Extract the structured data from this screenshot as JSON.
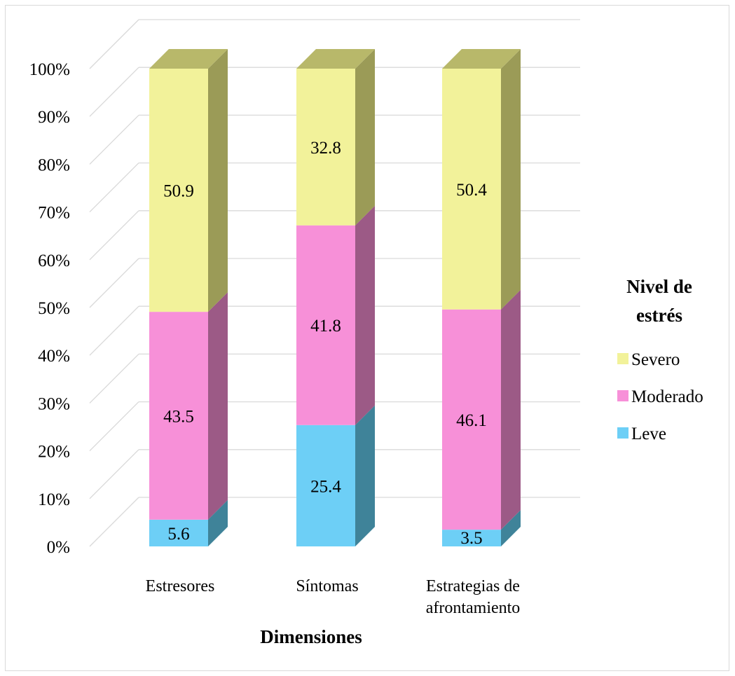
{
  "chart_data": {
    "type": "bar",
    "stacked": true,
    "three_d": true,
    "categories": [
      [
        "Estresores"
      ],
      [
        "Síntomas"
      ],
      [
        "Estrategias de",
        "afrontamiento"
      ]
    ],
    "series": [
      {
        "name": "Leve",
        "values": [
          5.6,
          25.4,
          3.5
        ],
        "color": "#6dcff6",
        "side_color": "#3f8399",
        "top_color": "#5aa8c4"
      },
      {
        "name": "Moderado",
        "values": [
          43.5,
          41.8,
          46.1
        ],
        "color": "#f790d8",
        "side_color": "#9c5a86",
        "top_color": "#c874ac"
      },
      {
        "name": "Severo",
        "values": [
          50.9,
          32.8,
          50.4
        ],
        "color": "#f2f29a",
        "side_color": "#9b9b57",
        "top_color": "#b8b86a"
      }
    ],
    "data_labels": [
      [
        "5.6",
        "25.4",
        "3.5"
      ],
      [
        "43.5",
        "41.8",
        "46.1"
      ],
      [
        "50.9",
        "32.8",
        "50.4"
      ]
    ],
    "y_ticks": [
      "0%",
      "10%",
      "20%",
      "30%",
      "40%",
      "50%",
      "60%",
      "70%",
      "80%",
      "90%",
      "100%"
    ],
    "ylim": [
      0,
      100
    ],
    "xlabel": "Dimensiones",
    "ylabel": "",
    "legend": {
      "title": [
        "Nivel de",
        "estrés"
      ],
      "entries": [
        "Severo",
        "Moderado",
        "Leve"
      ],
      "position": "right"
    },
    "grid": true
  }
}
